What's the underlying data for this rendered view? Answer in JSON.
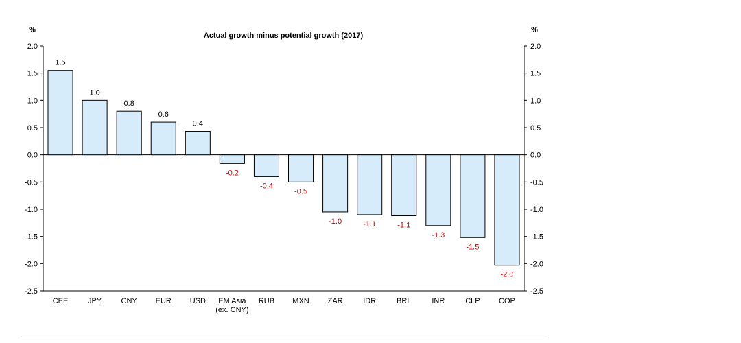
{
  "chart_data": {
    "type": "bar",
    "title": "Actual growth minus potential growth (2017)",
    "left_unit": "%",
    "right_unit": "%",
    "ylim": [
      -2.5,
      2.0
    ],
    "ytick_step": 0.5,
    "categories": [
      [
        "CEE"
      ],
      [
        "JPY"
      ],
      [
        "CNY"
      ],
      [
        "EUR"
      ],
      [
        "USD"
      ],
      [
        "EM Asia",
        "(ex. CNY)"
      ],
      [
        "RUB"
      ],
      [
        "MXN"
      ],
      [
        "ZAR"
      ],
      [
        "IDR"
      ],
      [
        "BRL"
      ],
      [
        "INR"
      ],
      [
        "CLP"
      ],
      [
        "COP"
      ]
    ],
    "values": [
      1.55,
      1.0,
      0.8,
      0.6,
      0.43,
      -0.16,
      -0.4,
      -0.5,
      -1.05,
      -1.1,
      -1.12,
      -1.3,
      -1.52,
      -2.03
    ],
    "data_labels": [
      "1.5",
      "1.0",
      "0.8",
      "0.6",
      "0.4",
      "-0.2",
      "-0.4",
      "-0.5",
      "-1.0",
      "-1.1",
      "-1.1",
      "-1.3",
      "-1.5",
      "-2.0"
    ],
    "bar_fill": "#d6ecfb",
    "bar_stroke": "#000000",
    "positive_label_color": "#000000",
    "negative_label_color": "#c00000",
    "grid": false,
    "legend": "none"
  }
}
